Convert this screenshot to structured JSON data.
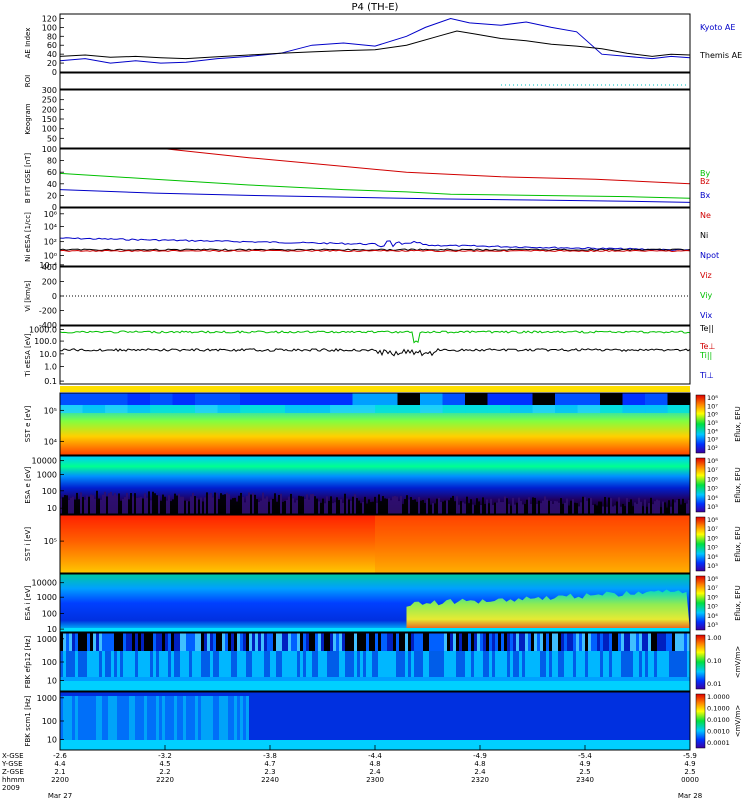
{
  "title": "P4 (TH-E)",
  "colors": {
    "red": "#d00000",
    "green": "#00c000",
    "blue": "#0000c8",
    "black": "#000000"
  },
  "chart_data": [
    {
      "id": "ae",
      "type": "line",
      "ylabel": "AE Index",
      "ylim": [
        0,
        130
      ],
      "yticks": [
        "0",
        "20",
        "40",
        "60",
        "80",
        "100",
        "120"
      ],
      "yticks_values": [
        0,
        20,
        40,
        60,
        80,
        100,
        120
      ],
      "series": [
        {
          "name": "Kyoto AE",
          "color": "#0000c8",
          "x": [
            0,
            0.04,
            0.08,
            0.12,
            0.16,
            0.2,
            0.25,
            0.3,
            0.35,
            0.4,
            0.45,
            0.5,
            0.55,
            0.58,
            0.62,
            0.65,
            0.7,
            0.74,
            0.78,
            0.82,
            0.86,
            0.9,
            0.94,
            0.97,
            1.0
          ],
          "y": [
            25,
            30,
            20,
            25,
            20,
            22,
            30,
            35,
            42,
            60,
            65,
            58,
            80,
            100,
            120,
            110,
            105,
            112,
            100,
            90,
            40,
            35,
            30,
            35,
            32
          ]
        },
        {
          "name": "Themis AE",
          "color": "#000000",
          "x": [
            0,
            0.04,
            0.08,
            0.12,
            0.16,
            0.2,
            0.25,
            0.3,
            0.35,
            0.4,
            0.45,
            0.5,
            0.55,
            0.6,
            0.63,
            0.66,
            0.7,
            0.74,
            0.78,
            0.82,
            0.86,
            0.9,
            0.94,
            0.97,
            1.0
          ],
          "y": [
            35,
            38,
            33,
            35,
            32,
            30,
            34,
            38,
            42,
            45,
            48,
            50,
            60,
            80,
            92,
            85,
            75,
            70,
            62,
            58,
            52,
            42,
            35,
            40,
            38
          ]
        }
      ]
    },
    {
      "id": "roi",
      "type": "line",
      "ylabel": "ROI",
      "series": []
    },
    {
      "id": "keogram",
      "type": "line",
      "ylabel": "Keogram",
      "ylim": [
        0,
        300
      ],
      "yticks": [
        "50",
        "100",
        "150",
        "200",
        "250",
        "300"
      ],
      "yticks_values": [
        50,
        100,
        150,
        200,
        250,
        300
      ],
      "series": []
    },
    {
      "id": "bfield",
      "type": "line",
      "ylabel": "B FIT GSE [nT]",
      "ylim": [
        0,
        100
      ],
      "yticks": [
        "0",
        "20",
        "40",
        "60",
        "80",
        "100"
      ],
      "yticks_values": [
        0,
        20,
        40,
        60,
        80,
        100
      ],
      "series": [
        {
          "name": "Bz",
          "color": "#d00000",
          "x": [
            0.17,
            0.3,
            0.45,
            0.55,
            0.7,
            0.85,
            1.0
          ],
          "y": [
            100,
            85,
            70,
            60,
            52,
            48,
            40
          ]
        },
        {
          "name": "By",
          "color": "#00c000",
          "x": [
            0,
            0.15,
            0.3,
            0.45,
            0.55,
            0.62,
            0.75,
            0.9,
            1.0
          ],
          "y": [
            58,
            48,
            38,
            30,
            26,
            22,
            20,
            18,
            15
          ]
        },
        {
          "name": "Bx",
          "color": "#0000c8",
          "x": [
            0,
            0.15,
            0.3,
            0.45,
            0.6,
            0.75,
            0.9,
            1.0
          ],
          "y": [
            30,
            24,
            20,
            17,
            14,
            12,
            10,
            8
          ]
        }
      ]
    },
    {
      "id": "density",
      "type": "line",
      "ylabel": "Ni eESA [1/cc]",
      "yticks": [
        "10⁻⁴",
        "10⁰",
        "10²",
        "10⁴",
        "10⁶"
      ],
      "series": [
        {
          "name": "Ne",
          "color": "#d00000"
        },
        {
          "name": "Ni",
          "color": "#000000"
        },
        {
          "name": "Npot",
          "color": "#0000c8"
        }
      ]
    },
    {
      "id": "velocity",
      "type": "line",
      "ylabel": "Vi [km/s]",
      "ylim": [
        -400,
        400
      ],
      "yticks": [
        "-400",
        "-200",
        "0",
        "200",
        "400"
      ],
      "yticks_values": [
        -400,
        -200,
        0,
        200,
        400
      ],
      "series": [
        {
          "name": "Viz",
          "color": "#d00000"
        },
        {
          "name": "Viy",
          "color": "#00c000"
        },
        {
          "name": "Vix",
          "color": "#0000c8"
        }
      ]
    },
    {
      "id": "temperature",
      "type": "line",
      "ylabel": "Ti eESA [eV]",
      "yticks": [
        "0.1",
        "1.0",
        "10.0",
        "100.0",
        "1000.0"
      ],
      "series": [
        {
          "name": "Te||",
          "color": "#000000"
        },
        {
          "name": "Te⊥",
          "color": "#d00000"
        },
        {
          "name": "Ti||",
          "color": "#00c000"
        },
        {
          "name": "Ti⊥",
          "color": "#0000c8"
        }
      ]
    },
    {
      "id": "sst_e",
      "type": "heatmap",
      "ylabel": "SST e [eV]",
      "yticks": [
        "10⁴",
        "10⁵"
      ],
      "colorbar_label": "Eflux, EFU",
      "colorbar_ticks": [
        "10⁸",
        "10⁷",
        "10⁶",
        "10⁵",
        "10⁴",
        "10³",
        "10²"
      ]
    },
    {
      "id": "esa_e",
      "type": "heatmap",
      "ylabel": "ESA e [eV]",
      "yticks": [
        "10",
        "100",
        "1000",
        "10000"
      ],
      "colorbar_label": "Eflux, EFU",
      "colorbar_ticks": [
        "10⁸",
        "10⁷",
        "10⁶",
        "10⁵",
        "10⁴",
        "10³"
      ]
    },
    {
      "id": "sst_i",
      "type": "heatmap",
      "ylabel": "SST i [eV]",
      "yticks": [
        "10⁵"
      ],
      "colorbar_label": "Eflux, EFU",
      "colorbar_ticks": [
        "10⁸",
        "10⁷",
        "10⁶",
        "10⁵",
        "10⁴",
        "10³"
      ]
    },
    {
      "id": "esa_i",
      "type": "heatmap",
      "ylabel": "ESA i [eV]",
      "yticks": [
        "10",
        "100",
        "1000",
        "10000"
      ],
      "colorbar_label": "Eflux, EFU",
      "colorbar_ticks": [
        "10⁸",
        "10⁷",
        "10⁶",
        "10⁵",
        "10⁴",
        "10³"
      ]
    },
    {
      "id": "fbk_e",
      "type": "heatmap",
      "ylabel": "FBK efp12 [Hz]",
      "yticks": [
        "10",
        "100",
        "1000"
      ],
      "colorbar_label": "<mV/m>",
      "colorbar_ticks": [
        "1.00",
        "0.10",
        "0.01"
      ]
    },
    {
      "id": "fbk_b",
      "type": "heatmap",
      "ylabel": "FBK scm1 [Hz]",
      "yticks": [
        "10",
        "100",
        "1000"
      ],
      "colorbar_label": "<mV/m>",
      "colorbar_ticks": [
        "1.0000",
        "0.1000",
        "0.0100",
        "0.0010",
        "0.0001"
      ]
    }
  ],
  "xaxis": {
    "row_labels": [
      "X-GSE",
      "Y-GSE",
      "Z-GSE",
      "hhmm",
      "2009"
    ],
    "ticks": [
      {
        "x": "-2.6",
        "y": "4.4",
        "z": "2.1",
        "time": "2200",
        "date": "Mar 27"
      },
      {
        "x": "-3.2",
        "y": "4.5",
        "z": "2.2",
        "time": "2220",
        "date": ""
      },
      {
        "x": "-3.8",
        "y": "4.7",
        "z": "2.3",
        "time": "2240",
        "date": ""
      },
      {
        "x": "-4.4",
        "y": "4.8",
        "z": "2.4",
        "time": "2300",
        "date": ""
      },
      {
        "x": "-4.9",
        "y": "4.8",
        "z": "2.4",
        "time": "2320",
        "date": ""
      },
      {
        "x": "-5.4",
        "y": "4.9",
        "z": "2.5",
        "time": "2340",
        "date": ""
      },
      {
        "x": "-5.9",
        "y": "4.9",
        "z": "2.5",
        "time": "0000",
        "date": "Mar 28"
      }
    ]
  }
}
